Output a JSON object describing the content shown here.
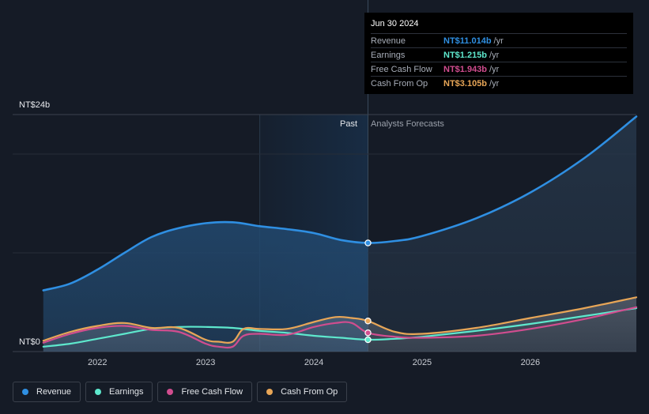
{
  "chart_data": {
    "type": "line",
    "y_label_top": "NT$24b",
    "y_label_bottom": "NT$0",
    "ylim": [
      0,
      24
    ],
    "xlim": [
      2021.45,
      2026.98
    ],
    "x_ticks": [
      {
        "value": 2022,
        "label": "2022"
      },
      {
        "value": 2023,
        "label": "2023"
      },
      {
        "value": 2024,
        "label": "2024"
      },
      {
        "value": 2025,
        "label": "2025"
      },
      {
        "value": 2026,
        "label": "2026"
      }
    ],
    "past_label": "Past",
    "forecast_label": "Analysts Forecasts",
    "past_start": 2023.5,
    "divider": 2024.5,
    "series": [
      {
        "name": "Revenue",
        "color": "#2f8fe2",
        "area": true,
        "x": [
          2021.5,
          2021.75,
          2022.0,
          2022.25,
          2022.5,
          2022.75,
          2023.0,
          2023.25,
          2023.5,
          2023.75,
          2024.0,
          2024.25,
          2024.5,
          2024.75,
          2025.0,
          2025.5,
          2026.0,
          2026.5,
          2026.98
        ],
        "y": [
          6.2,
          6.9,
          8.3,
          10.0,
          11.6,
          12.5,
          13.0,
          13.1,
          12.7,
          12.4,
          12.0,
          11.3,
          11.0,
          11.2,
          11.7,
          13.5,
          16.1,
          19.6,
          23.8
        ]
      },
      {
        "name": "Earnings",
        "color": "#5ee8cd",
        "x": [
          2021.5,
          2021.75,
          2022.0,
          2022.25,
          2022.5,
          2022.75,
          2023.0,
          2023.25,
          2023.5,
          2023.75,
          2024.0,
          2024.25,
          2024.5,
          2024.75,
          2025.0,
          2025.5,
          2026.0,
          2026.5,
          2026.98
        ],
        "y": [
          0.5,
          0.8,
          1.3,
          1.8,
          2.3,
          2.5,
          2.5,
          2.4,
          2.1,
          1.9,
          1.6,
          1.4,
          1.2,
          1.3,
          1.5,
          2.1,
          2.8,
          3.6,
          4.4
        ]
      },
      {
        "name": "Free Cash Flow",
        "color": "#d14d8f",
        "x": [
          2021.5,
          2021.75,
          2022.0,
          2022.25,
          2022.5,
          2022.75,
          2023.0,
          2023.12,
          2023.25,
          2023.35,
          2023.5,
          2023.75,
          2024.0,
          2024.2,
          2024.35,
          2024.5,
          2024.75,
          2025.0,
          2025.5,
          2026.0,
          2026.5,
          2026.98
        ],
        "y": [
          0.9,
          1.8,
          2.4,
          2.6,
          2.2,
          2.0,
          0.8,
          0.5,
          0.5,
          1.6,
          1.8,
          1.7,
          2.5,
          2.9,
          2.9,
          1.9,
          1.5,
          1.4,
          1.6,
          2.3,
          3.3,
          4.5
        ]
      },
      {
        "name": "Cash From Op",
        "color": "#e8a657",
        "x": [
          2021.5,
          2021.75,
          2022.0,
          2022.25,
          2022.5,
          2022.75,
          2023.0,
          2023.12,
          2023.25,
          2023.35,
          2023.5,
          2023.75,
          2024.0,
          2024.2,
          2024.35,
          2024.5,
          2024.75,
          2025.0,
          2025.5,
          2026.0,
          2026.5,
          2026.98
        ],
        "y": [
          1.1,
          2.0,
          2.6,
          2.9,
          2.4,
          2.4,
          1.2,
          1.0,
          1.0,
          2.3,
          2.3,
          2.3,
          3.0,
          3.5,
          3.4,
          3.1,
          2.0,
          1.8,
          2.4,
          3.4,
          4.4,
          5.5
        ]
      }
    ],
    "markers": [
      {
        "series": "Revenue",
        "x": 2024.5,
        "y": 11.0
      },
      {
        "series": "Cash From Op",
        "x": 2024.5,
        "y": 3.1
      },
      {
        "series": "Free Cash Flow",
        "x": 2024.5,
        "y": 1.9
      },
      {
        "series": "Earnings",
        "x": 2024.5,
        "y": 1.2
      }
    ]
  },
  "tooltip": {
    "date": "Jun 30 2024",
    "rows": [
      {
        "label": "Revenue",
        "value": "NT$11.014b",
        "unit": "/yr",
        "color": "#2f8fe2"
      },
      {
        "label": "Earnings",
        "value": "NT$1.215b",
        "unit": "/yr",
        "color": "#5ee8cd"
      },
      {
        "label": "Free Cash Flow",
        "value": "NT$1.943b",
        "unit": "/yr",
        "color": "#d14d8f"
      },
      {
        "label": "Cash From Op",
        "value": "NT$3.105b",
        "unit": "/yr",
        "color": "#e8a657"
      }
    ]
  },
  "legend": [
    {
      "label": "Revenue",
      "color": "#2f8fe2"
    },
    {
      "label": "Earnings",
      "color": "#5ee8cd"
    },
    {
      "label": "Free Cash Flow",
      "color": "#d14d8f"
    },
    {
      "label": "Cash From Op",
      "color": "#e8a657"
    }
  ]
}
